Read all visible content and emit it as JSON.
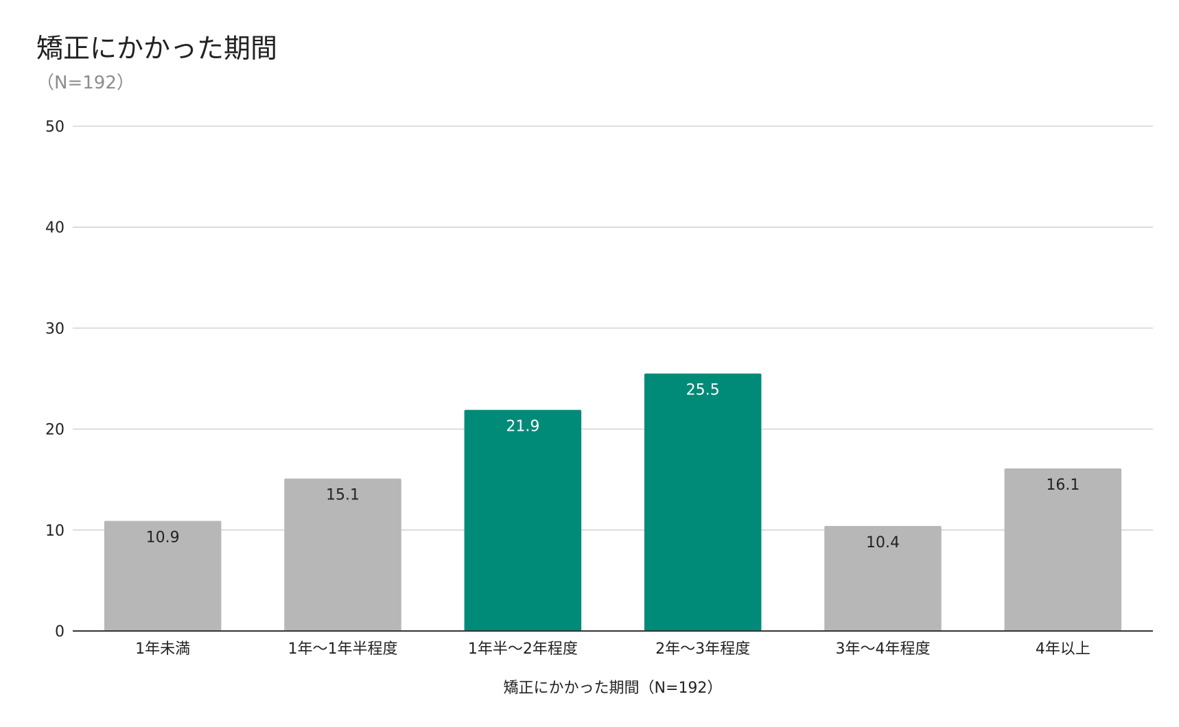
{
  "chart_data": {
    "type": "bar",
    "title": "矯正にかかった期間",
    "subtitle": "（N=192）",
    "xlabel": "矯正にかかった期間（N=192）",
    "ylabel": "",
    "categories": [
      "1年未満",
      "1年〜1年半程度",
      "1年半〜2年程度",
      "2年〜3年程度",
      "3年〜4年程度",
      "4年以上"
    ],
    "values": [
      10.9,
      15.1,
      21.9,
      25.5,
      10.4,
      16.1
    ],
    "data_labels": [
      "10.9",
      "15.1",
      "21.9",
      "25.5",
      "10.4",
      "16.1"
    ],
    "highlighted": [
      false,
      false,
      true,
      true,
      false,
      false
    ],
    "ylim": [
      0,
      50
    ],
    "yticks": [
      0,
      10,
      20,
      30,
      40,
      50
    ],
    "ytick_labels": [
      "0",
      "10",
      "20",
      "30",
      "40",
      "50"
    ],
    "grid": true,
    "legend": "none",
    "colors": {
      "default_bar": "#b7b7b7",
      "highlight_bar": "#008b78",
      "default_label": "#222222",
      "highlight_label": "#ffffff"
    }
  }
}
